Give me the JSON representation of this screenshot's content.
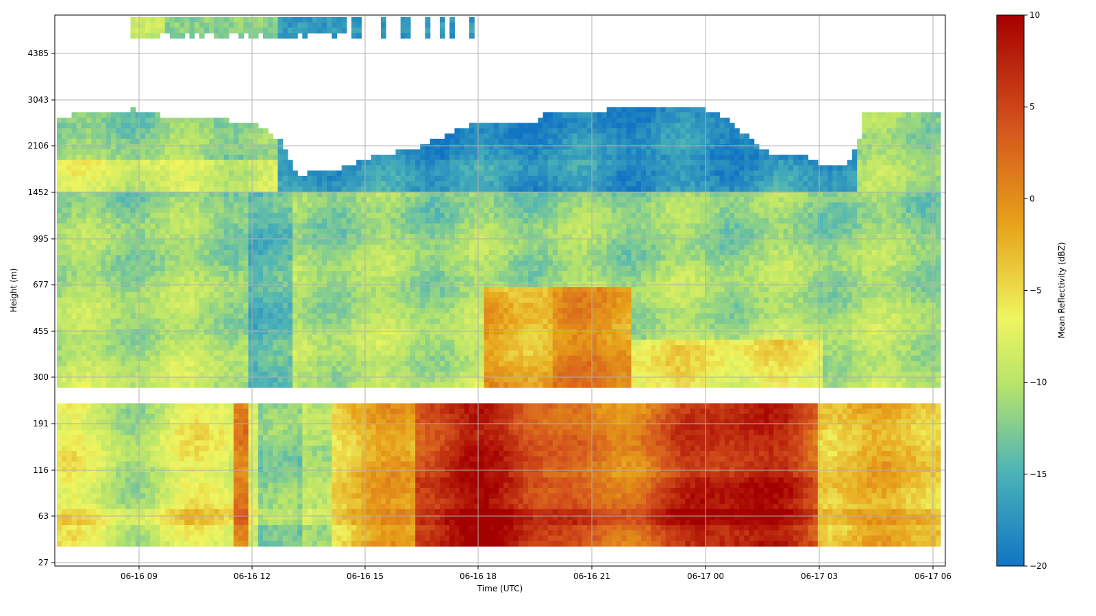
{
  "chart_data": {
    "type": "heatmap",
    "title": "",
    "xlabel": "Time (UTC)",
    "ylabel": "Height (m)",
    "x_ticks": [
      "06-16 09",
      "06-16 12",
      "06-16 15",
      "06-16 18",
      "06-16 21",
      "06-17 00",
      "06-17 03",
      "06-17 06"
    ],
    "y_ticks": [
      "27",
      "63",
      "116",
      "191",
      "300",
      "455",
      "677",
      "995",
      "1452",
      "2106",
      "3043",
      "4385"
    ],
    "x_range": [
      "06-16 06:45",
      "06-17 06:15"
    ],
    "y_range_m": [
      27,
      5500
    ],
    "grid": true,
    "colorbar": {
      "label": "Mean Reflectivity (dBZ)",
      "min": -20,
      "max": 10,
      "ticks": [
        "10",
        "5",
        "0",
        "−5",
        "−10",
        "−15",
        "−20"
      ],
      "colormap": [
        "#1175c4",
        "#4cb3b8",
        "#b8e46a",
        "#eef560",
        "#e7a21a",
        "#d4531d",
        "#a50000"
      ]
    },
    "description_values_dbz": {
      "lower_layer_night": 8,
      "lower_layer_morning": -8,
      "upper_cloud_deck": -17,
      "mid_layer": -12
    }
  }
}
